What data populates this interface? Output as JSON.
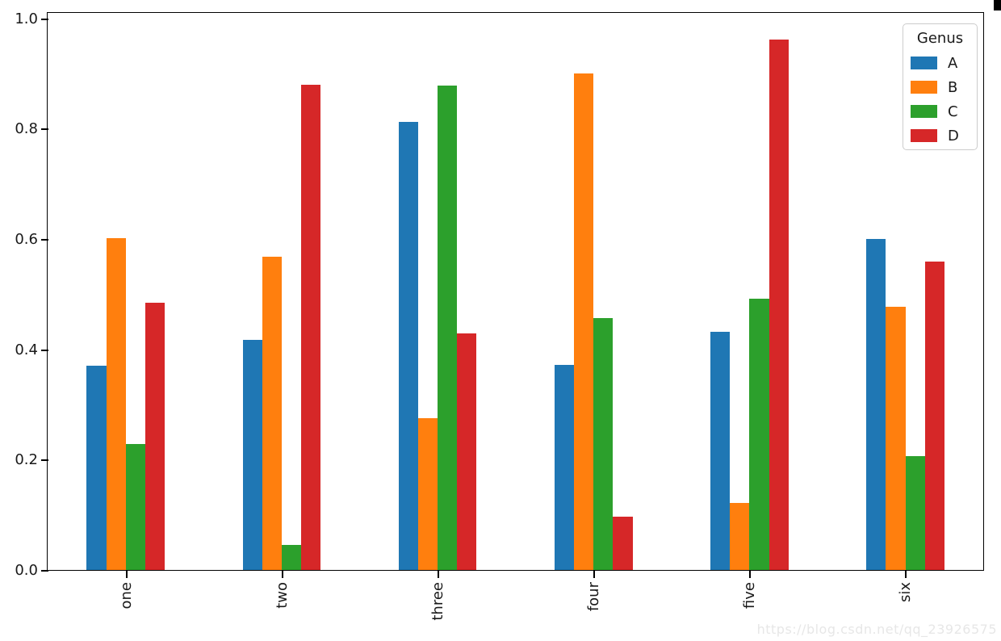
{
  "chart_data": {
    "type": "bar",
    "categories": [
      "one",
      "two",
      "three",
      "four",
      "five",
      "six"
    ],
    "series": [
      {
        "name": "A",
        "color": "#1f77b4",
        "values": [
          0.37,
          0.418,
          0.813,
          0.372,
          0.432,
          0.601
        ]
      },
      {
        "name": "B",
        "color": "#ff7f0e",
        "values": [
          0.602,
          0.568,
          0.275,
          0.9,
          0.122,
          0.477
        ]
      },
      {
        "name": "C",
        "color": "#2ca02c",
        "values": [
          0.228,
          0.046,
          0.879,
          0.457,
          0.492,
          0.206
        ]
      },
      {
        "name": "D",
        "color": "#d62728",
        "values": [
          0.485,
          0.88,
          0.429,
          0.097,
          0.962,
          0.56
        ]
      }
    ],
    "title": "",
    "xlabel": "",
    "ylabel": "",
    "ylim": [
      0,
      1.01
    ],
    "yticks": [
      "0.0",
      "0.2",
      "0.4",
      "0.6",
      "0.8",
      "1.0"
    ],
    "x_tick_rotation_degrees": 90,
    "grid": false,
    "bar_group_width_fraction": 0.5,
    "legend": {
      "title": "Genus",
      "position": "upper right"
    }
  },
  "watermark": "https://blog.csdn.net/qq_23926575"
}
